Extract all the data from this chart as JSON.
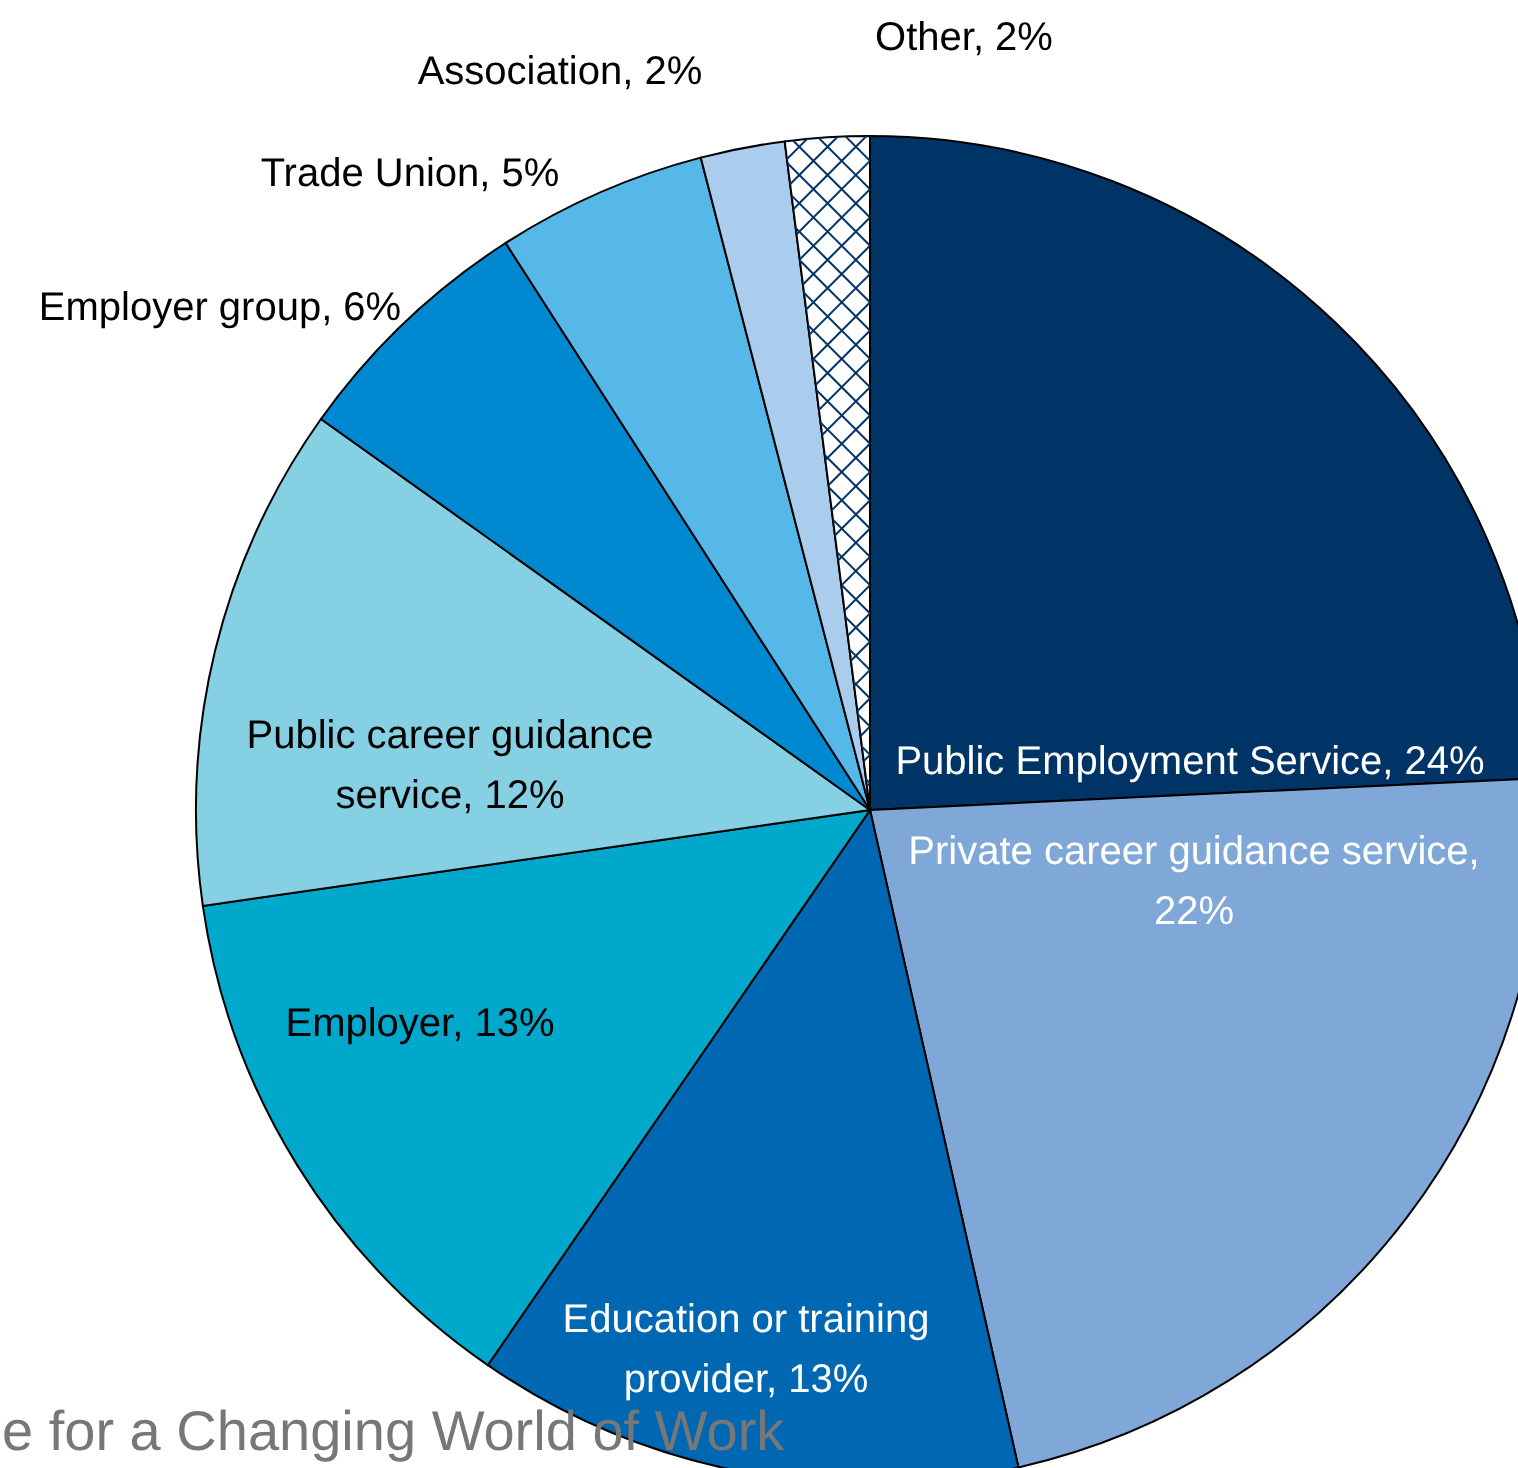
{
  "chart_data": {
    "type": "pie",
    "categories": [
      "Public Employment Service, 24%",
      "Private career guidance service, 22%",
      "Education or training provider, 13%",
      "Employer, 13%",
      "Public career guidance service, 12%",
      "Employer group, 6%",
      "Trade Union, 5%",
      "Association, 2%",
      "Other, 2%"
    ],
    "values": [
      24,
      22,
      13,
      13,
      12,
      6,
      5,
      2,
      2
    ],
    "colors": [
      "#003366",
      "#7fa8d9",
      "#0068b3",
      "#00a8cc",
      "#85d1e3",
      "#0088d1",
      "#55b8e8",
      "#aacdee",
      "#ffffff"
    ],
    "annotations": [
      "e for a Changing World of Work"
    ]
  }
}
